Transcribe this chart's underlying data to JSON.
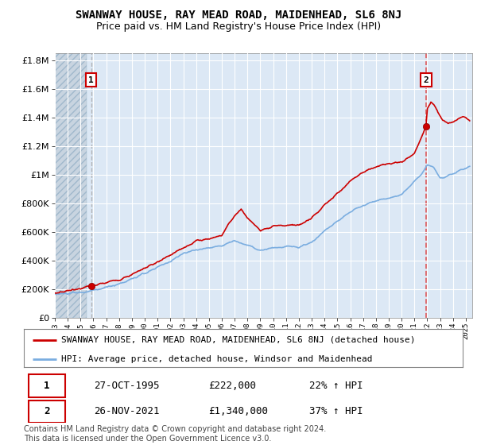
{
  "title": "SWANWAY HOUSE, RAY MEAD ROAD, MAIDENHEAD, SL6 8NJ",
  "subtitle": "Price paid vs. HM Land Registry's House Price Index (HPI)",
  "ytick_vals": [
    0,
    200000,
    400000,
    600000,
    800000,
    1000000,
    1200000,
    1400000,
    1600000,
    1800000
  ],
  "ytick_labels": [
    "£0",
    "£200K",
    "£400K",
    "£600K",
    "£800K",
    "£1M",
    "£1.2M",
    "£1.4M",
    "£1.6M",
    "£1.8M"
  ],
  "ylim": [
    0,
    1850000
  ],
  "xlim_start": 1993.0,
  "xlim_end": 2025.5,
  "sale1_x": 1995.82,
  "sale1_y": 222000,
  "sale2_x": 2021.9,
  "sale2_y": 1340000,
  "sale1_label": "1",
  "sale2_label": "2",
  "line_color_red": "#cc0000",
  "line_color_blue": "#7aade0",
  "marker_color": "#cc0000",
  "dashed1_color": "#aaaaaa",
  "dashed2_color": "#dd4444",
  "plot_bg_color": "#dce8f5",
  "hatch_bg_color": "#c8d4e0",
  "grid_color": "#ffffff",
  "legend_label_red": "SWANWAY HOUSE, RAY MEAD ROAD, MAIDENHEAD, SL6 8NJ (detached house)",
  "legend_label_blue": "HPI: Average price, detached house, Windsor and Maidenhead",
  "table_row1": [
    "1",
    "27-OCT-1995",
    "£222,000",
    "22% ↑ HPI"
  ],
  "table_row2": [
    "2",
    "26-NOV-2021",
    "£1,340,000",
    "37% ↑ HPI"
  ],
  "footer": "Contains HM Land Registry data © Crown copyright and database right 2024.\nThis data is licensed under the Open Government Licence v3.0.",
  "title_fontsize": 10,
  "subtitle_fontsize": 9,
  "legend_fontsize": 8,
  "table_fontsize": 9,
  "footer_fontsize": 7
}
